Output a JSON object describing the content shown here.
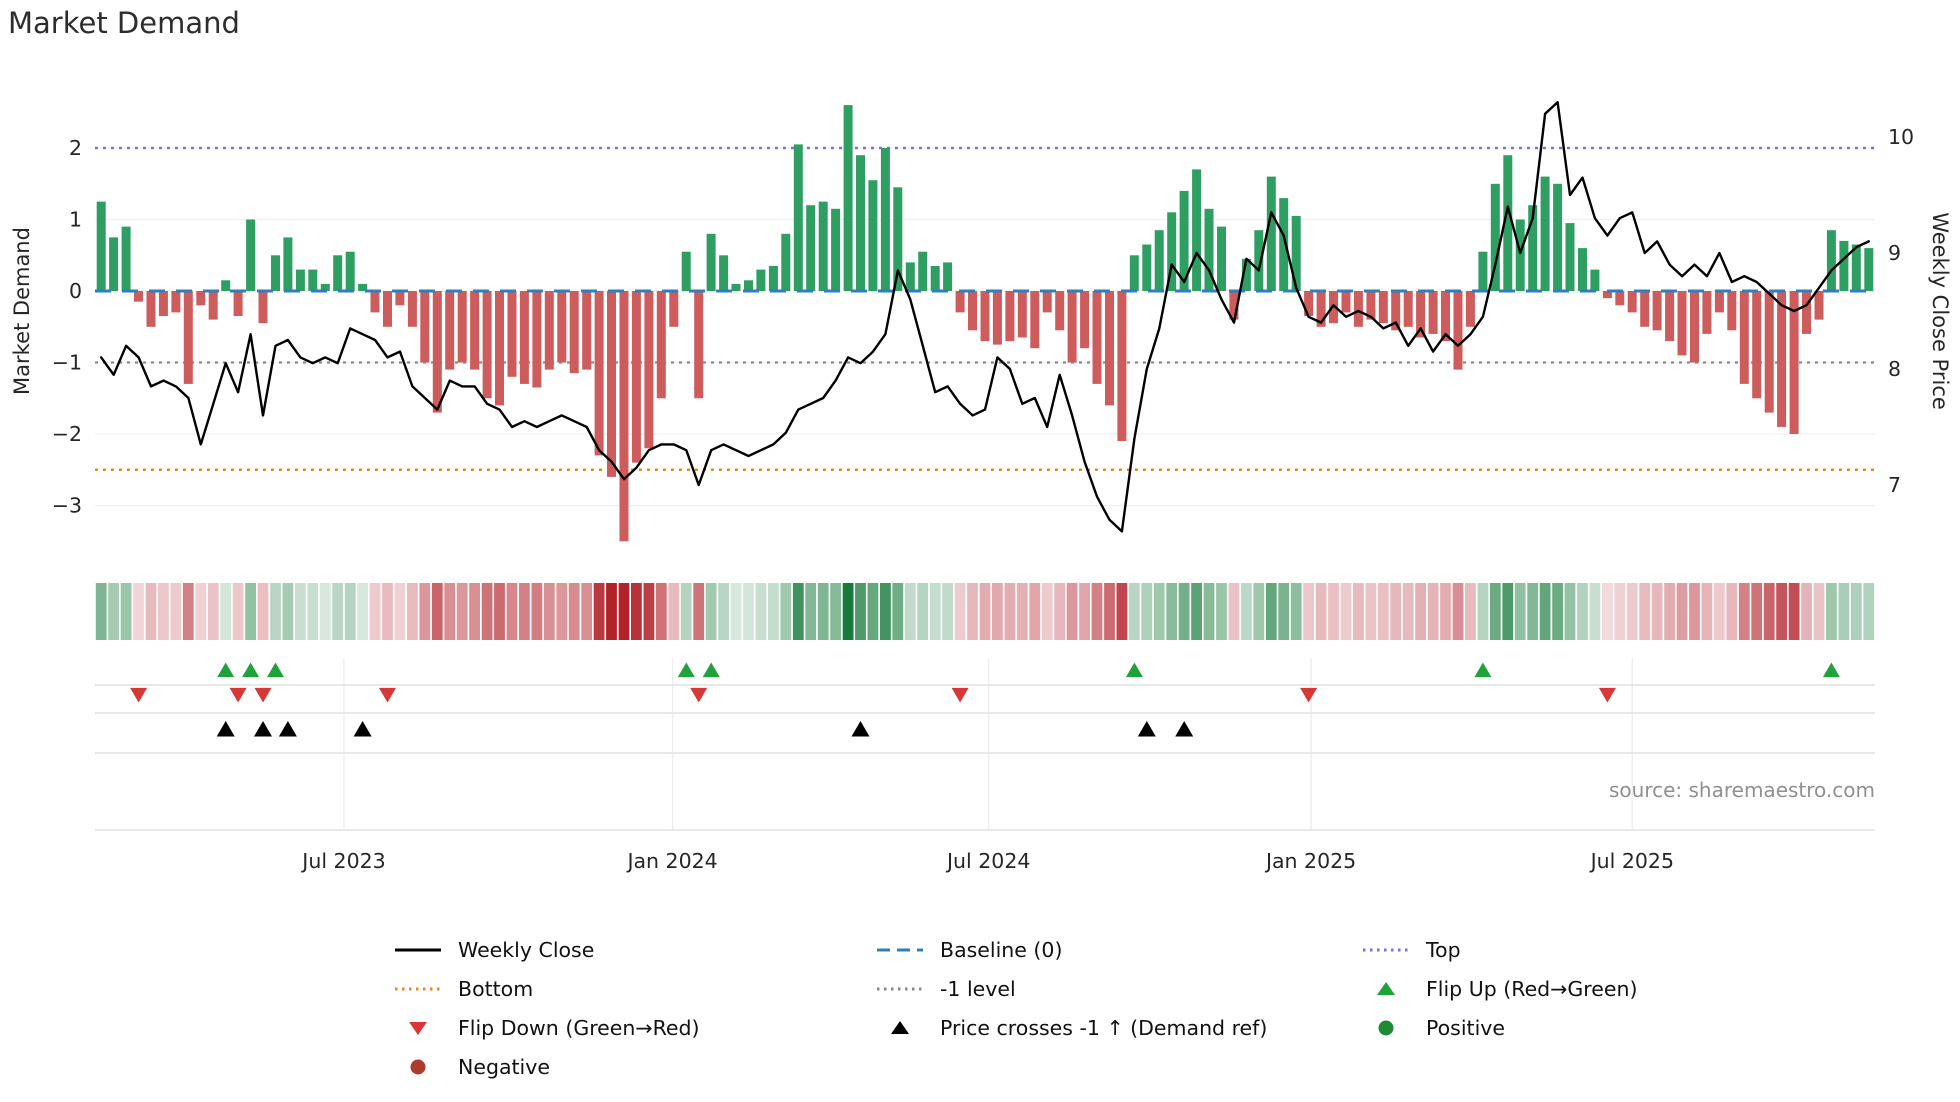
{
  "title": "Market Demand",
  "source_note": "source: sharemaestro.com",
  "axes": {
    "left_label": "Market Demand",
    "right_label": "Weekly Close Price"
  },
  "colors": {
    "bar_positive": "#2f9e63",
    "bar_negative": "#cd5c5c",
    "price_line": "#000000",
    "baseline": "#2f7fbf",
    "top_line": "#7d6ee0",
    "bottom_line": "#e8891e",
    "minus1_line": "#8a8a8a",
    "flip_up": "#1fa23a",
    "flip_down": "#d93636",
    "price_cross": "#000000",
    "positive_dot": "#1f8a34",
    "negative_dot": "#b03a2e",
    "heat_green_rgb": "23,122,58",
    "heat_red_rgb": "178,34,43"
  },
  "chart_data": {
    "type": "bar+line",
    "title": "Market Demand",
    "x_unit": "week",
    "x_ticks": [
      {
        "label": "Jul 2023",
        "week": 19.5
      },
      {
        "label": "Jan 2024",
        "week": 45.9
      },
      {
        "label": "Jul 2024",
        "week": 71.3
      },
      {
        "label": "Jan 2025",
        "week": 97.2
      },
      {
        "label": "Jul 2025",
        "week": 123.0
      }
    ],
    "left_axis": {
      "label": "Market Demand",
      "ticks": [
        2,
        1,
        0,
        -1,
        -2,
        -3
      ],
      "range": [
        -3.6,
        2.95
      ]
    },
    "right_axis": {
      "label": "Weekly Close Price",
      "ticks": [
        10,
        9,
        8,
        7
      ],
      "range": [
        6.45,
        10.45
      ]
    },
    "reference_lines": {
      "baseline": 0,
      "minus1": -1,
      "bottom": -2.5,
      "top": 2
    },
    "series": [
      {
        "name": "Market Demand",
        "type": "bar",
        "axis": "left",
        "values": [
          1.25,
          0.75,
          0.9,
          -0.15,
          -0.5,
          -0.35,
          -0.3,
          -1.3,
          -0.2,
          -0.4,
          0.15,
          -0.35,
          1.0,
          -0.45,
          0.5,
          0.75,
          0.3,
          0.3,
          0.1,
          0.5,
          0.55,
          0.1,
          -0.3,
          -0.5,
          -0.2,
          -0.5,
          -1.0,
          -1.7,
          -1.1,
          -1.0,
          -1.1,
          -1.5,
          -1.6,
          -1.2,
          -1.3,
          -1.35,
          -1.1,
          -1.0,
          -1.15,
          -1.1,
          -2.3,
          -2.6,
          -3.5,
          -2.4,
          -2.2,
          -1.5,
          -0.5,
          0.55,
          -1.5,
          0.8,
          0.5,
          0.1,
          0.15,
          0.3,
          0.35,
          0.8,
          2.05,
          1.2,
          1.25,
          1.15,
          2.6,
          1.9,
          1.55,
          2.0,
          1.45,
          0.4,
          0.55,
          0.35,
          0.4,
          -0.3,
          -0.55,
          -0.7,
          -0.75,
          -0.7,
          -0.65,
          -0.8,
          -0.3,
          -0.55,
          -1.0,
          -0.8,
          -1.3,
          -1.6,
          -2.1,
          0.5,
          0.65,
          0.85,
          1.1,
          1.4,
          1.7,
          1.15,
          0.9,
          -0.4,
          0.45,
          0.85,
          1.6,
          1.3,
          1.05,
          -0.35,
          -0.5,
          -0.45,
          -0.3,
          -0.5,
          -0.4,
          -0.45,
          -0.55,
          -0.5,
          -0.65,
          -0.6,
          -0.7,
          -1.1,
          -0.5,
          0.55,
          1.5,
          1.9,
          1.0,
          1.2,
          1.6,
          1.5,
          0.95,
          0.6,
          0.3,
          -0.1,
          -0.2,
          -0.3,
          -0.5,
          -0.55,
          -0.7,
          -0.9,
          -1.0,
          -0.6,
          -0.3,
          -0.55,
          -1.3,
          -1.5,
          -1.7,
          -1.9,
          -2.0,
          -0.6,
          -0.4,
          0.85,
          0.7,
          0.65,
          0.6
        ]
      },
      {
        "name": "Weekly Close",
        "type": "line",
        "axis": "right",
        "values": [
          8.1,
          7.95,
          8.2,
          8.1,
          7.85,
          7.9,
          7.85,
          7.75,
          7.35,
          7.7,
          8.05,
          7.8,
          8.3,
          7.6,
          8.2,
          8.25,
          8.1,
          8.05,
          8.1,
          8.05,
          8.35,
          8.3,
          8.25,
          8.1,
          8.15,
          7.85,
          7.75,
          7.65,
          7.9,
          7.85,
          7.85,
          7.7,
          7.65,
          7.5,
          7.55,
          7.5,
          7.55,
          7.6,
          7.55,
          7.5,
          7.3,
          7.2,
          7.05,
          7.15,
          7.3,
          7.35,
          7.35,
          7.3,
          7.0,
          7.3,
          7.35,
          7.3,
          7.25,
          7.3,
          7.35,
          7.45,
          7.65,
          7.7,
          7.75,
          7.9,
          8.1,
          8.05,
          8.15,
          8.3,
          8.85,
          8.6,
          8.2,
          7.8,
          7.85,
          7.7,
          7.6,
          7.65,
          8.1,
          8.0,
          7.7,
          7.75,
          7.5,
          7.95,
          7.6,
          7.2,
          6.9,
          6.7,
          6.6,
          7.4,
          8.0,
          8.35,
          8.9,
          8.75,
          9.0,
          8.85,
          8.6,
          8.4,
          8.95,
          8.85,
          9.35,
          9.15,
          8.7,
          8.45,
          8.4,
          8.55,
          8.45,
          8.5,
          8.45,
          8.35,
          8.4,
          8.2,
          8.35,
          8.15,
          8.3,
          8.2,
          8.3,
          8.45,
          8.9,
          9.4,
          9.0,
          9.3,
          10.2,
          10.3,
          9.5,
          9.65,
          9.3,
          9.15,
          9.3,
          9.35,
          9.0,
          9.1,
          8.9,
          8.8,
          8.9,
          8.8,
          9.0,
          8.75,
          8.8,
          8.75,
          8.65,
          8.55,
          8.5,
          8.55,
          8.7,
          8.85,
          8.95,
          9.05,
          9.1
        ]
      }
    ],
    "markers": {
      "flip_up_weeks": [
        10,
        12,
        14,
        47,
        49,
        83,
        111,
        139
      ],
      "flip_down_weeks": [
        3,
        11,
        13,
        23,
        48,
        69,
        97,
        121
      ],
      "price_cross_weeks": [
        10,
        13,
        15,
        21,
        61,
        84,
        87
      ]
    },
    "heatmap": "demand-sign-intensity-strip"
  },
  "legend": {
    "items": [
      {
        "label": "Weekly Close",
        "swatch": "line-solid-black"
      },
      {
        "label": "Baseline (0)",
        "swatch": "line-dashed-blue"
      },
      {
        "label": "Top",
        "swatch": "line-dotted-purple"
      },
      {
        "label": "Bottom",
        "swatch": "line-dotted-orange"
      },
      {
        "label": "-1 level",
        "swatch": "line-dotted-gray"
      },
      {
        "label": "Flip Up (Red→Green)",
        "swatch": "triangle-up-green"
      },
      {
        "label": "Flip Down (Green→Red)",
        "swatch": "triangle-down-red"
      },
      {
        "label": "Price crosses -1 ↑ (Demand ref)",
        "swatch": "triangle-up-black"
      },
      {
        "label": "Positive",
        "swatch": "circle-green"
      },
      {
        "label": "Negative",
        "swatch": "circle-darkred"
      }
    ]
  }
}
